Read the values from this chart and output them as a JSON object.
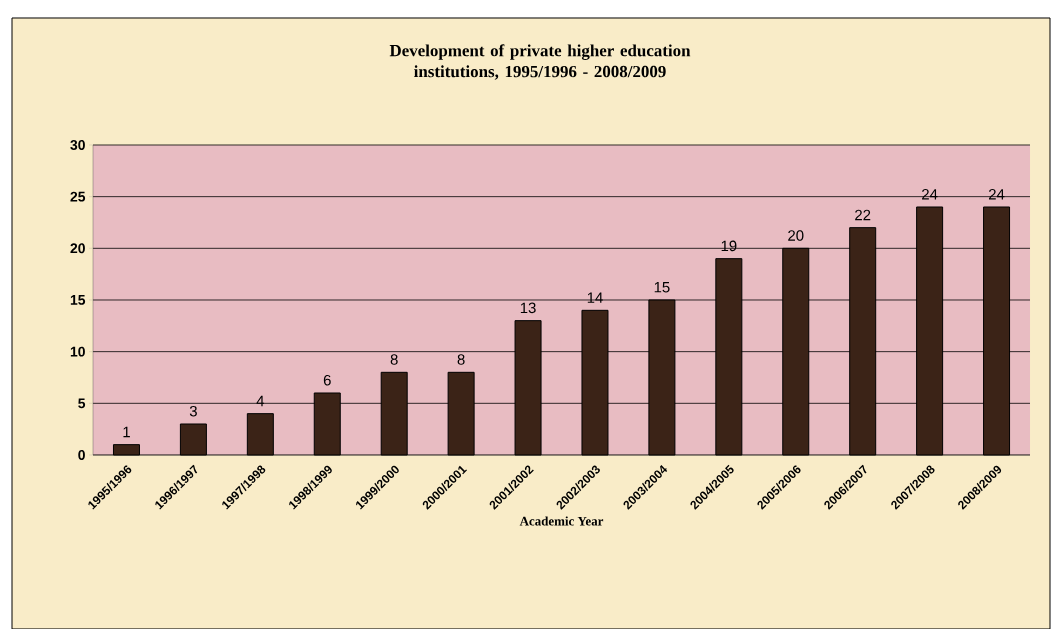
{
  "chart_data": {
    "type": "bar",
    "title": "Development of private higher education institutions, 1995/1996 - 2008/2009",
    "xlabel": "Academic Year",
    "categories": [
      "1995/1996",
      "1996/1997",
      "1997/1998",
      "1998/1999",
      "1999/2000",
      "2000/2001",
      "2001/2002",
      "2002/2003",
      "2003/2004",
      "2004/2005",
      "2005/2006",
      "2006/2007",
      "2007/2008",
      "2008/2009"
    ],
    "values": [
      1,
      3,
      4,
      6,
      8,
      8,
      13,
      14,
      15,
      19,
      20,
      22,
      24,
      24
    ],
    "color": "#3b2317",
    "ylim": [
      0,
      30
    ],
    "yticks": [
      0,
      5,
      10,
      15,
      20,
      25,
      30
    ],
    "grid": "y",
    "data_labels": true
  }
}
